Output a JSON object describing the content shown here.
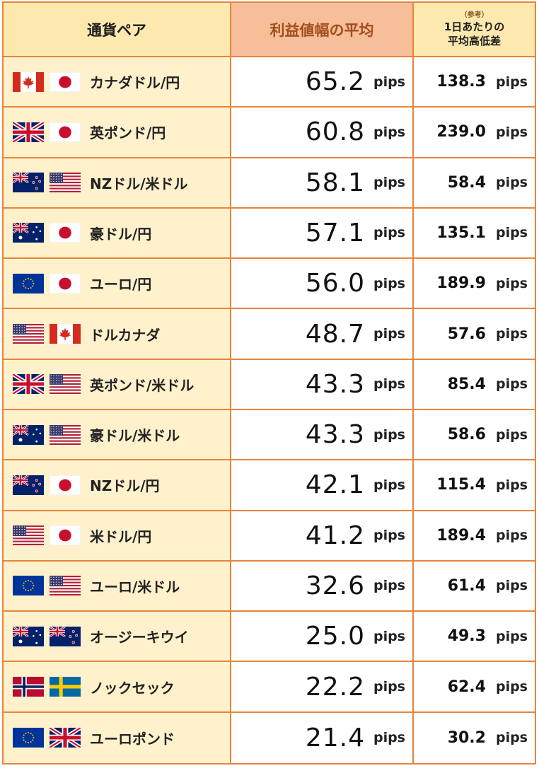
{
  "header": {
    "col_pair": "通貨ペア",
    "col_avg": "利益値幅の平均",
    "col_daily_note": "（参考）",
    "col_daily_line1": "1日あたりの",
    "col_daily_line2": "平均高低差"
  },
  "unit": "pips",
  "rows": [
    {
      "pair": "カナダドル/円",
      "avg": "65.2",
      "daily": "138.3",
      "flags": [
        "ca",
        "jp"
      ]
    },
    {
      "pair": "英ポンド/円",
      "avg": "60.8",
      "daily": "239.0",
      "flags": [
        "gb",
        "jp"
      ]
    },
    {
      "pair": "NZドル/米ドル",
      "avg": "58.1",
      "daily": "58.4",
      "flags": [
        "nz",
        "us"
      ]
    },
    {
      "pair": "豪ドル/円",
      "avg": "57.1",
      "daily": "135.1",
      "flags": [
        "au",
        "jp"
      ]
    },
    {
      "pair": "ユーロ/円",
      "avg": "56.0",
      "daily": "189.9",
      "flags": [
        "eu",
        "jp"
      ]
    },
    {
      "pair": "ドルカナダ",
      "avg": "48.7",
      "daily": "57.6",
      "flags": [
        "us",
        "ca"
      ]
    },
    {
      "pair": "英ポンド/米ドル",
      "avg": "43.3",
      "daily": "85.4",
      "flags": [
        "gb",
        "us"
      ]
    },
    {
      "pair": "豪ドル/米ドル",
      "avg": "43.3",
      "daily": "58.6",
      "flags": [
        "au",
        "us"
      ]
    },
    {
      "pair": "NZドル/円",
      "avg": "42.1",
      "daily": "115.4",
      "flags": [
        "nz",
        "jp"
      ]
    },
    {
      "pair": "米ドル/円",
      "avg": "41.2",
      "daily": "189.4",
      "flags": [
        "us",
        "jp"
      ]
    },
    {
      "pair": "ユーロ/米ドル",
      "avg": "32.6",
      "daily": "61.4",
      "flags": [
        "eu",
        "us"
      ]
    },
    {
      "pair": "オージーキウイ",
      "avg": "25.0",
      "daily": "49.3",
      "flags": [
        "au",
        "nz"
      ]
    },
    {
      "pair": "ノックセック",
      "avg": "22.2",
      "daily": "62.4",
      "flags": [
        "no",
        "se"
      ]
    },
    {
      "pair": "ユーロポンド",
      "avg": "21.4",
      "daily": "30.2",
      "flags": [
        "eu",
        "gb"
      ]
    }
  ],
  "colors": {
    "border": "#e8843c",
    "header_avg_bg": "#f6bf9a",
    "header_bg": "#fde8ae",
    "pair_bg": "#fff1cc"
  }
}
